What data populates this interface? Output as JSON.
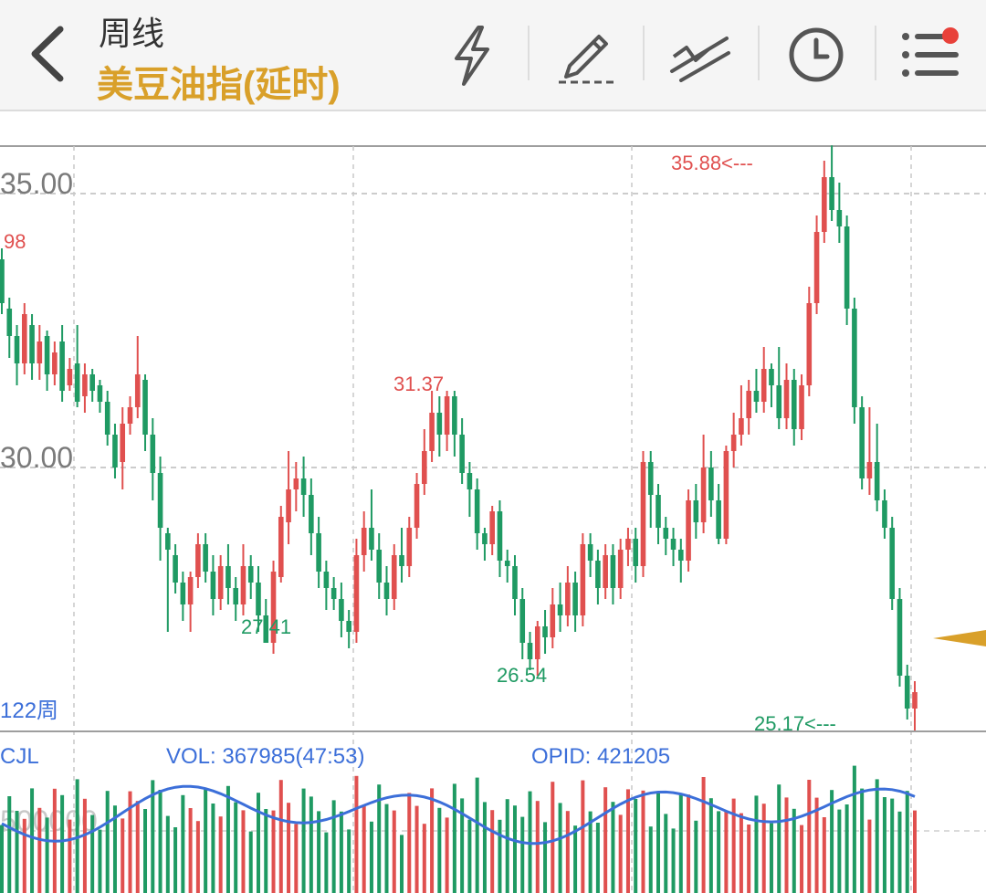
{
  "header": {
    "period": "周线",
    "instrument": "美豆油指(延时)",
    "icons": [
      "back-chevron-icon",
      "lightning-icon",
      "pencil-icon",
      "trendline-icon",
      "clock-icon",
      "menu-list-icon"
    ],
    "badge_color": "#e8413a"
  },
  "colors": {
    "up": "#e0504f",
    "down": "#1f9a63",
    "accent": "#d9a02a",
    "line": "#3c6fd9"
  },
  "price_chart": {
    "y_labels": [
      "35.00",
      "30.00"
    ],
    "left_label": "98",
    "max_label": "35.88<---",
    "min_label": "25.17<---",
    "annotations": [
      "31.37",
      "27.41",
      "26.54"
    ],
    "period_count": "122周"
  },
  "volume_chart": {
    "label_cjl": "CJL",
    "label_vol": "VOL: 367985(47:53)",
    "label_opid": "OPID: 421205",
    "y_label": "500000"
  },
  "chart_data": {
    "type": "candlestick",
    "ylim": [
      24.5,
      36.0
    ],
    "yticks": [
      35.0,
      30.0
    ],
    "candles": [
      [
        33.8,
        33.0,
        34.0,
        32.8
      ],
      [
        32.9,
        32.4,
        33.1,
        32.0
      ],
      [
        32.4,
        31.9,
        32.6,
        31.5
      ],
      [
        31.9,
        32.8,
        33.0,
        31.7
      ],
      [
        32.6,
        31.9,
        32.8,
        31.6
      ],
      [
        31.9,
        32.3,
        32.6,
        31.6
      ],
      [
        32.4,
        31.7,
        32.5,
        31.4
      ],
      [
        31.7,
        32.1,
        32.3,
        31.5
      ],
      [
        32.3,
        31.4,
        32.6,
        31.2
      ],
      [
        31.5,
        31.8,
        32.0,
        31.4
      ],
      [
        31.9,
        31.2,
        32.6,
        31.1
      ],
      [
        31.3,
        31.7,
        31.9,
        31.0
      ],
      [
        31.7,
        31.4,
        31.8,
        31.2
      ],
      [
        31.5,
        31.2,
        31.6,
        31.0
      ],
      [
        31.2,
        30.6,
        31.4,
        30.4
      ],
      [
        30.6,
        30.0,
        30.8,
        29.8
      ],
      [
        30.1,
        30.8,
        31.1,
        29.6
      ],
      [
        30.8,
        31.1,
        31.3,
        30.6
      ],
      [
        31.1,
        31.7,
        32.4,
        30.9
      ],
      [
        31.6,
        30.6,
        31.7,
        30.3
      ],
      [
        30.6,
        29.9,
        30.9,
        29.4
      ],
      [
        29.9,
        28.9,
        30.2,
        28.3
      ],
      [
        28.8,
        28.5,
        28.9,
        27.0
      ],
      [
        28.4,
        27.9,
        28.6,
        27.7
      ],
      [
        27.9,
        27.5,
        28.1,
        27.2
      ],
      [
        27.5,
        28.0,
        28.1,
        27.0
      ],
      [
        28.0,
        28.6,
        28.8,
        27.8
      ],
      [
        28.6,
        28.1,
        28.8,
        27.9
      ],
      [
        28.1,
        27.6,
        28.4,
        27.3
      ],
      [
        27.6,
        28.2,
        28.4,
        27.4
      ],
      [
        28.2,
        27.8,
        28.6,
        27.5
      ],
      [
        27.8,
        27.5,
        28.0,
        27.2
      ],
      [
        27.5,
        28.2,
        28.6,
        27.3
      ],
      [
        28.2,
        27.9,
        28.4,
        27.6
      ],
      [
        27.9,
        27.3,
        28.2,
        27.0
      ],
      [
        27.3,
        26.8,
        27.6,
        27.0
      ],
      [
        26.8,
        28.1,
        28.3,
        26.6
      ],
      [
        28.0,
        29.1,
        29.3,
        27.9
      ],
      [
        29.0,
        29.6,
        30.3,
        28.6
      ],
      [
        29.6,
        29.8,
        30.1,
        29.2
      ],
      [
        29.8,
        29.5,
        30.2,
        29.1
      ],
      [
        29.5,
        28.8,
        29.8,
        28.4
      ],
      [
        28.8,
        28.1,
        29.1,
        27.8
      ],
      [
        28.1,
        27.8,
        28.3,
        27.4
      ],
      [
        27.8,
        27.6,
        28.0,
        27.4
      ],
      [
        27.6,
        27.2,
        27.9,
        26.9
      ],
      [
        27.2,
        27.0,
        27.4,
        26.7
      ],
      [
        27.0,
        28.4,
        28.7,
        26.8
      ],
      [
        28.4,
        28.9,
        29.2,
        28.1
      ],
      [
        28.9,
        28.5,
        29.6,
        28.3
      ],
      [
        28.5,
        27.9,
        28.8,
        27.6
      ],
      [
        27.9,
        27.6,
        28.2,
        27.3
      ],
      [
        27.6,
        28.4,
        28.6,
        27.4
      ],
      [
        28.4,
        28.2,
        28.9,
        27.9
      ],
      [
        28.2,
        28.9,
        29.1,
        28.0
      ],
      [
        28.9,
        29.7,
        29.9,
        28.7
      ],
      [
        29.7,
        30.3,
        30.7,
        29.5
      ],
      [
        30.3,
        31.0,
        31.4,
        30.1
      ],
      [
        31.0,
        30.6,
        31.3,
        30.2
      ],
      [
        30.6,
        31.3,
        31.4,
        30.3
      ],
      [
        31.3,
        30.6,
        31.4,
        30.2
      ],
      [
        30.6,
        29.9,
        30.9,
        29.7
      ],
      [
        29.9,
        29.6,
        30.1,
        29.1
      ],
      [
        29.6,
        28.8,
        29.8,
        28.5
      ],
      [
        28.8,
        28.6,
        28.9,
        28.3
      ],
      [
        28.6,
        29.2,
        29.3,
        28.4
      ],
      [
        29.2,
        28.3,
        29.4,
        28.0
      ],
      [
        28.3,
        28.2,
        28.5,
        27.9
      ],
      [
        28.2,
        27.6,
        28.4,
        27.3
      ],
      [
        27.6,
        26.8,
        27.8,
        26.5
      ],
      [
        26.8,
        26.5,
        27.0,
        26.3
      ],
      [
        26.5,
        27.1,
        27.2,
        26.2
      ],
      [
        27.1,
        26.9,
        27.4,
        26.6
      ],
      [
        26.9,
        27.5,
        27.8,
        26.7
      ],
      [
        27.5,
        27.3,
        27.9,
        27.0
      ],
      [
        27.3,
        27.9,
        28.2,
        27.1
      ],
      [
        27.9,
        27.3,
        28.1,
        27.0
      ],
      [
        27.3,
        28.6,
        28.8,
        27.1
      ],
      [
        28.6,
        28.3,
        28.8,
        28.0
      ],
      [
        28.3,
        27.8,
        28.5,
        27.5
      ],
      [
        27.8,
        28.4,
        28.6,
        27.6
      ],
      [
        28.4,
        27.8,
        28.6,
        27.5
      ],
      [
        27.8,
        28.5,
        28.7,
        27.6
      ],
      [
        28.5,
        28.7,
        28.9,
        28.2
      ],
      [
        28.7,
        28.2,
        28.9,
        27.9
      ],
      [
        28.2,
        30.1,
        30.3,
        28.0
      ],
      [
        30.1,
        29.5,
        30.3,
        28.9
      ],
      [
        29.5,
        28.9,
        29.7,
        28.6
      ],
      [
        28.9,
        28.7,
        29.1,
        28.4
      ],
      [
        28.7,
        28.5,
        28.9,
        28.2
      ],
      [
        28.5,
        28.3,
        28.7,
        27.9
      ],
      [
        28.3,
        29.4,
        29.6,
        28.1
      ],
      [
        29.4,
        29.0,
        29.7,
        28.7
      ],
      [
        29.0,
        30.0,
        30.6,
        28.8
      ],
      [
        30.0,
        29.4,
        30.3,
        29.1
      ],
      [
        29.4,
        28.7,
        29.7,
        28.6
      ],
      [
        28.7,
        30.3,
        30.4,
        28.6
      ],
      [
        30.3,
        30.6,
        31.0,
        30.0
      ],
      [
        30.6,
        30.9,
        31.5,
        30.4
      ],
      [
        30.9,
        31.4,
        31.6,
        30.6
      ],
      [
        31.4,
        31.2,
        31.8,
        31.0
      ],
      [
        31.2,
        31.8,
        32.2,
        31.0
      ],
      [
        31.8,
        31.5,
        31.9,
        31.1
      ],
      [
        31.5,
        30.9,
        32.2,
        30.7
      ],
      [
        30.9,
        31.6,
        31.9,
        30.7
      ],
      [
        31.6,
        30.7,
        31.8,
        30.4
      ],
      [
        30.7,
        31.5,
        31.7,
        30.5
      ],
      [
        31.5,
        33.0,
        33.3,
        31.3
      ],
      [
        33.0,
        34.3,
        34.6,
        32.8
      ],
      [
        34.3,
        35.3,
        35.6,
        34.1
      ],
      [
        35.3,
        34.7,
        35.88,
        34.5
      ],
      [
        34.7,
        34.4,
        35.2,
        34.1
      ],
      [
        34.4,
        32.9,
        34.6,
        32.6
      ],
      [
        32.9,
        31.1,
        33.1,
        30.8
      ],
      [
        31.1,
        29.8,
        31.3,
        29.6
      ],
      [
        29.8,
        30.1,
        31.1,
        29.5
      ],
      [
        30.1,
        29.4,
        30.8,
        29.2
      ],
      [
        29.4,
        28.9,
        29.6,
        28.7
      ],
      [
        28.9,
        27.6,
        29.1,
        27.4
      ],
      [
        27.6,
        26.2,
        27.8,
        26.0
      ],
      [
        26.2,
        25.6,
        26.4,
        25.4
      ],
      [
        25.6,
        25.9,
        26.1,
        25.17
      ]
    ]
  }
}
